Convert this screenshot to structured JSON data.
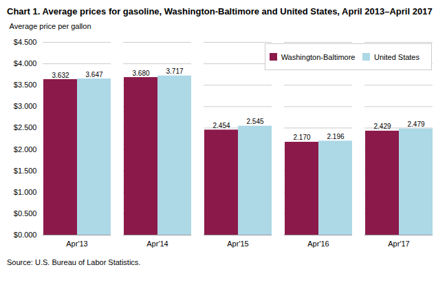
{
  "chart_data": {
    "type": "bar",
    "title": "Chart 1. Average prices for gasoline, Washington-Baltimore and United States, April 2013–April 2017",
    "ylabel": "Average price per gallon",
    "source": "Source: U.S. Bureau of Labor Statistics.",
    "categories": [
      "Apr'13",
      "Apr'14",
      "Apr'15",
      "Apr'16",
      "Apr'17"
    ],
    "series": [
      {
        "name": "Washington-Baltimore",
        "color": "#8B1A4A",
        "values": [
          3.632,
          3.68,
          2.454,
          2.17,
          2.429
        ],
        "value_labels": [
          "3.632",
          "3.680",
          "2.454",
          "2.170",
          "2.429"
        ]
      },
      {
        "name": "United States",
        "color": "#ADD8E6",
        "values": [
          3.647,
          3.717,
          2.545,
          2.196,
          2.479
        ],
        "value_labels": [
          "3.647",
          "3.717",
          "2.545",
          "2.196",
          "2.479"
        ]
      }
    ],
    "ylim": [
      0,
      4.5
    ],
    "yticks": [
      {
        "value": 0.0,
        "label": "$0.000"
      },
      {
        "value": 0.5,
        "label": "$0.500"
      },
      {
        "value": 1.0,
        "label": "$1.000"
      },
      {
        "value": 1.5,
        "label": "$1.500"
      },
      {
        "value": 2.0,
        "label": "$2.000"
      },
      {
        "value": 2.5,
        "label": "$2.500"
      },
      {
        "value": 3.0,
        "label": "$3.000"
      },
      {
        "value": 3.5,
        "label": "$3.500"
      },
      {
        "value": 4.0,
        "label": "$4.000"
      },
      {
        "value": 4.5,
        "label": "$4.500"
      }
    ],
    "grid": true,
    "legend": "upper right",
    "data_labels": true
  }
}
